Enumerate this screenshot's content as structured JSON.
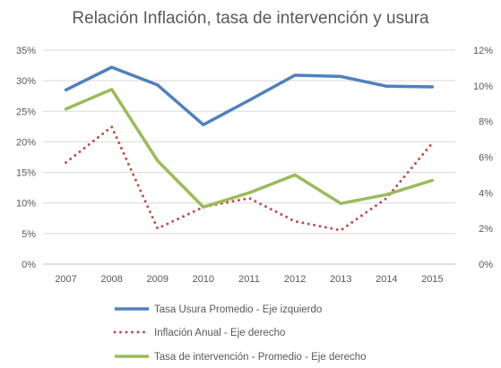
{
  "chart_data": {
    "type": "line",
    "title": "Relación Inflación, tasa de intervención y usura",
    "categories": [
      "2007",
      "2008",
      "2009",
      "2010",
      "2011",
      "2012",
      "2013",
      "2014",
      "2015"
    ],
    "y_left": {
      "lim": [
        0,
        35
      ],
      "ticks": [
        0,
        5,
        10,
        15,
        20,
        25,
        30,
        35
      ],
      "tick_labels": [
        "0%",
        "5%",
        "10%",
        "15%",
        "20%",
        "25%",
        "30%",
        "35%"
      ]
    },
    "y_right": {
      "lim": [
        0,
        12
      ],
      "ticks": [
        0,
        2,
        4,
        6,
        8,
        10,
        12
      ],
      "tick_labels": [
        "0%",
        "2%",
        "4%",
        "6%",
        "8%",
        "10%",
        "12%"
      ]
    },
    "grid": true,
    "legend_position": "bottom",
    "series": [
      {
        "name": "Tasa Usura Promedio - Eje izquierdo",
        "axis": "left",
        "style": "solid",
        "color": "#4F81BD",
        "values": [
          28.5,
          32.2,
          29.3,
          22.8,
          26.8,
          30.9,
          30.7,
          29.1,
          29.0
        ]
      },
      {
        "name": "Inflación Anual - Eje derecho",
        "axis": "right",
        "style": "dotted",
        "color": "#C0504D",
        "values": [
          5.7,
          7.7,
          2.0,
          3.2,
          3.7,
          2.4,
          1.9,
          3.7,
          6.8
        ]
      },
      {
        "name": "Tasa de intervención - Promedio - Eje derecho",
        "axis": "right",
        "style": "solid",
        "color": "#9BBB59",
        "values": [
          8.7,
          9.8,
          5.8,
          3.2,
          4.0,
          5.0,
          3.4,
          3.9,
          4.7
        ]
      }
    ]
  }
}
